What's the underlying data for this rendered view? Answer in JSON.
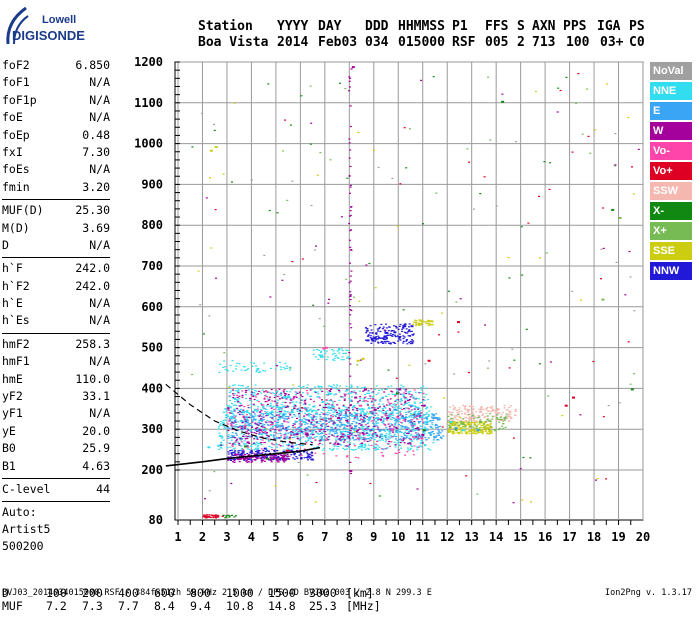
{
  "logo": {
    "line1": "Lowell",
    "line2": "DIGISONDE"
  },
  "header": {
    "row1": [
      "Station",
      "YYYY",
      "DAY",
      "DDD",
      "HHMMSS",
      "P1",
      "FFS",
      "S",
      "AXN",
      "PPS",
      "IGA",
      "PS"
    ],
    "row2": [
      "Boa Vista",
      "2014",
      "Feb03",
      "034",
      "015000",
      "RSF",
      "005",
      "2",
      "713",
      "100",
      "03+",
      "C0"
    ]
  },
  "params": [
    [
      [
        "foF2",
        "6.850"
      ],
      [
        "foF1",
        "N/A"
      ],
      [
        "foF1p",
        "N/A"
      ],
      [
        "foE",
        "N/A"
      ],
      [
        "foEp",
        "0.48"
      ],
      [
        "fxI",
        "7.30"
      ],
      [
        "foEs",
        "N/A"
      ],
      [
        "fmin",
        "3.20"
      ]
    ],
    [
      [
        "MUF(D)",
        "25.30"
      ],
      [
        "M(D)",
        "3.69"
      ],
      [
        "D",
        "N/A"
      ]
    ],
    [
      [
        "h`F",
        "242.0"
      ],
      [
        "h`F2",
        "242.0"
      ],
      [
        "h`E",
        "N/A"
      ],
      [
        "h`Es",
        "N/A"
      ]
    ],
    [
      [
        "hmF2",
        "258.3"
      ],
      [
        "hmF1",
        "N/A"
      ],
      [
        "hmE",
        "110.0"
      ],
      [
        "yF2",
        "33.1"
      ],
      [
        "yF1",
        "N/A"
      ],
      [
        "yE",
        "20.0"
      ],
      [
        "B0",
        "25.9"
      ],
      [
        "B1",
        "4.63"
      ]
    ],
    [
      [
        "C-level",
        "44"
      ]
    ]
  ],
  "auto": [
    "Auto:",
    "Artist5",
    "500200"
  ],
  "legend": [
    {
      "label": "NoVal",
      "color": "#a0a0a0"
    },
    {
      "label": "NNE",
      "color": "#33ddf0"
    },
    {
      "label": "E",
      "color": "#3aa4f5"
    },
    {
      "label": "W",
      "color": "#a4009c"
    },
    {
      "label": "Vo-",
      "color": "#ff44aa"
    },
    {
      "label": "Vo+",
      "color": "#dd0022"
    },
    {
      "label": "SSW",
      "color": "#f4b8b0"
    },
    {
      "label": "X-",
      "color": "#118811"
    },
    {
      "label": "X+",
      "color": "#77bb55"
    },
    {
      "label": "SSE",
      "color": "#cccc11"
    },
    {
      "label": "NNW",
      "color": "#2218d8"
    }
  ],
  "muf_table": {
    "d_label": "D",
    "d_values": [
      "100",
      "200",
      "400",
      "600",
      "800",
      "1000",
      "1500",
      "3000"
    ],
    "d_unit": "[km]",
    "muf_label": "MUF",
    "muf_values": [
      "7.2",
      "7.3",
      "7.7",
      "8.4",
      "9.4",
      "10.8",
      "14.8",
      "25.3"
    ],
    "muf_unit": "[MHz]"
  },
  "footer": "BVJ03_2014034015000.RSF / 384fx512h 50 kHz 2.5 km / DPS-4D BVJ03 003 / 2.8 N 299.3 E",
  "version": "Ion2Png v. 1.3.17",
  "chart_data": {
    "type": "scatter",
    "title": "",
    "xlabel": "",
    "ylabel": "",
    "xlim": [
      0.5,
      20
    ],
    "ylim": [
      80,
      1200
    ],
    "xticks": [
      "1",
      "2",
      "3",
      "4",
      "5",
      "6",
      "7",
      "8",
      "9",
      "10",
      "11",
      "12",
      "13",
      "14",
      "15",
      "16",
      "17",
      "18",
      "19",
      "20"
    ],
    "yticks": [
      "80",
      "200",
      "300",
      "400",
      "500",
      "600",
      "700",
      "800",
      "900",
      "1000",
      "1100",
      "1200"
    ],
    "grid": true,
    "series": [
      {
        "name": "NNE",
        "color": "#33ddf0",
        "points": [
          [
            2.6,
            262
          ],
          [
            3.1,
            330
          ],
          [
            3.6,
            345
          ],
          [
            4.1,
            350
          ],
          [
            4.6,
            340
          ],
          [
            5.1,
            355
          ],
          [
            5.6,
            345
          ],
          [
            6.1,
            320
          ],
          [
            6.6,
            340
          ],
          [
            7.1,
            355
          ],
          [
            7.6,
            345
          ],
          [
            8.1,
            335
          ],
          [
            8.6,
            340
          ],
          [
            9.1,
            330
          ],
          [
            9.6,
            335
          ],
          [
            10.1,
            330
          ],
          [
            10.6,
            315
          ],
          [
            11.1,
            320
          ],
          [
            12.1,
            320
          ],
          [
            12.6,
            300
          ],
          [
            2.2,
            258
          ],
          [
            5.3,
            380
          ],
          [
            6.8,
            480
          ]
        ]
      },
      {
        "name": "E",
        "color": "#3aa4f5",
        "points": [
          [
            3.2,
            285
          ],
          [
            4.2,
            300
          ],
          [
            5.2,
            310
          ],
          [
            6.2,
            305
          ],
          [
            7.2,
            300
          ],
          [
            8.2,
            310
          ],
          [
            9.2,
            300
          ],
          [
            10.2,
            330
          ],
          [
            10.8,
            340
          ],
          [
            11.5,
            330
          ],
          [
            12.3,
            305
          ],
          [
            13.2,
            300
          ],
          [
            9.8,
            350
          ],
          [
            10.5,
            360
          ]
        ]
      },
      {
        "name": "W",
        "color": "#a4009c",
        "points": [
          [
            3.3,
            240
          ],
          [
            3.8,
            270
          ],
          [
            4.3,
            300
          ],
          [
            5.8,
            290
          ],
          [
            7.5,
            330
          ],
          [
            8.2,
            380
          ],
          [
            8.6,
            400
          ],
          [
            9.0,
            350
          ],
          [
            9.5,
            330
          ],
          [
            10.0,
            400
          ],
          [
            11.0,
            360
          ],
          [
            8.0,
            200
          ],
          [
            8.1,
            1190
          ]
        ]
      },
      {
        "name": "Vo-",
        "color": "#ff44aa",
        "points": [
          [
            6.9,
            500
          ],
          [
            7.0,
            502
          ],
          [
            8.4,
            360
          ],
          [
            9.7,
            300
          ],
          [
            10.9,
            280
          ],
          [
            8.3,
            280
          ]
        ]
      },
      {
        "name": "Vo+",
        "color": "#dd0022",
        "points": [
          [
            2.2,
            90
          ],
          [
            2.5,
            90
          ],
          [
            11.2,
            470
          ],
          [
            12.4,
            565
          ],
          [
            16.8,
            360
          ],
          [
            17.1,
            380
          ],
          [
            5.4,
            250
          ]
        ]
      },
      {
        "name": "SSW",
        "color": "#f4b8b0",
        "points": [
          [
            12.8,
            350
          ],
          [
            13.3,
            345
          ],
          [
            14.0,
            350
          ],
          [
            14.5,
            345
          ]
        ]
      },
      {
        "name": "X-",
        "color": "#118811",
        "points": [
          [
            3.7,
            260
          ],
          [
            4.6,
            230
          ],
          [
            9.9,
            390
          ],
          [
            11.0,
            300
          ],
          [
            14.2,
            1105
          ],
          [
            18.7,
            840
          ],
          [
            19.5,
            400
          ]
        ]
      },
      {
        "name": "X+",
        "color": "#77bb55",
        "points": [
          [
            13.3,
            320
          ],
          [
            13.9,
            300
          ],
          [
            14.3,
            330
          ],
          [
            18.3,
            620
          ],
          [
            19.0,
            820
          ]
        ]
      },
      {
        "name": "SSE",
        "color": "#cccc11",
        "points": [
          [
            2.3,
            985
          ],
          [
            2.5,
            994
          ],
          [
            12.5,
            305
          ],
          [
            13.0,
            300
          ],
          [
            13.6,
            305
          ],
          [
            10.8,
            560
          ],
          [
            11.2,
            568
          ],
          [
            8.3,
            470
          ],
          [
            8.5,
            475
          ]
        ]
      },
      {
        "name": "NNW",
        "color": "#2218d8",
        "points": [
          [
            8.7,
            520
          ],
          [
            9.0,
            525
          ],
          [
            9.4,
            530
          ],
          [
            9.8,
            540
          ],
          [
            10.2,
            555
          ],
          [
            10.5,
            555
          ],
          [
            3.5,
            240
          ],
          [
            4.5,
            255
          ],
          [
            5.6,
            260
          ]
        ]
      }
    ],
    "curves": [
      {
        "name": "hmF2_dashed",
        "style": "dashed",
        "points": [
          [
            0.5,
            410
          ],
          [
            1.5,
            360
          ],
          [
            2.5,
            320
          ],
          [
            3.5,
            295
          ],
          [
            4.5,
            278
          ],
          [
            5.5,
            268
          ],
          [
            6.5,
            262
          ]
        ]
      },
      {
        "name": "trace_solid",
        "style": "solid",
        "points": [
          [
            0.5,
            210
          ],
          [
            2.0,
            220
          ],
          [
            3.0,
            228
          ],
          [
            4.0,
            234
          ],
          [
            5.0,
            240
          ],
          [
            6.0,
            246
          ],
          [
            6.8,
            255
          ]
        ]
      }
    ]
  }
}
